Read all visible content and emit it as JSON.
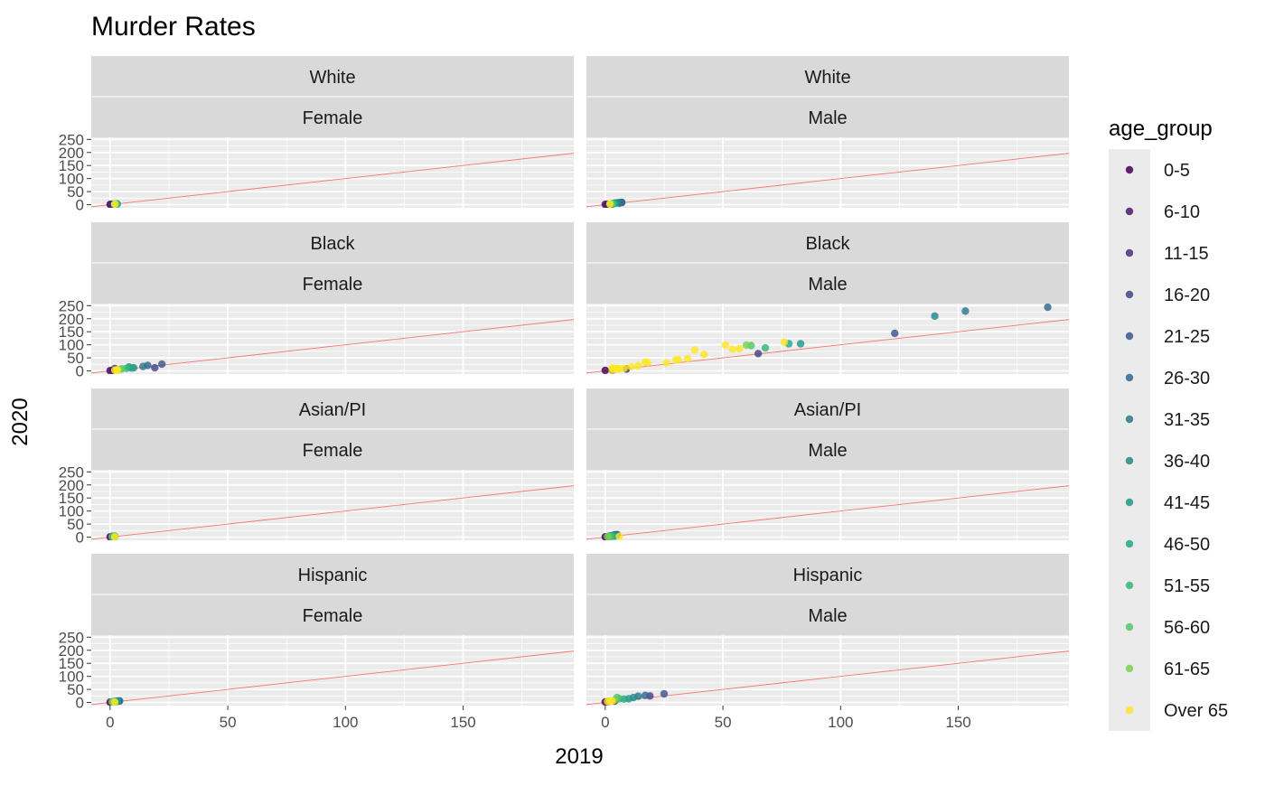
{
  "chart_data": {
    "type": "scatter",
    "title": "Murder Rates",
    "xlabel": "2019",
    "ylabel": "2020",
    "xlim": [
      -8,
      197
    ],
    "ylim": [
      -12,
      258
    ],
    "x_ticks": [
      0,
      50,
      100,
      150
    ],
    "y_ticks": [
      0,
      50,
      100,
      150,
      200,
      250
    ],
    "grid": true,
    "reference_line": {
      "slope": 1,
      "intercept": 0,
      "color": "#F8766D"
    },
    "legend": {
      "title": "age_group",
      "placement": "right",
      "entries": [
        {
          "label": "0-5",
          "color": "#440154"
        },
        {
          "label": "6-10",
          "color": "#481A6C"
        },
        {
          "label": "11-15",
          "color": "#472F7D"
        },
        {
          "label": "16-20",
          "color": "#414487"
        },
        {
          "label": "21-25",
          "color": "#39568C"
        },
        {
          "label": "26-30",
          "color": "#31688E"
        },
        {
          "label": "31-35",
          "color": "#2A788E"
        },
        {
          "label": "36-40",
          "color": "#23888E"
        },
        {
          "label": "41-45",
          "color": "#1F988B"
        },
        {
          "label": "46-50",
          "color": "#22A884"
        },
        {
          "label": "51-55",
          "color": "#35B779"
        },
        {
          "label": "56-60",
          "color": "#54C568"
        },
        {
          "label": "61-65",
          "color": "#7AD151"
        },
        {
          "label": "Over 65",
          "color": "#FDE725"
        }
      ]
    },
    "facets": [
      {
        "race": "White",
        "sex": "Female",
        "points": [
          [
            0,
            1,
            0
          ],
          [
            0.5,
            1,
            1
          ],
          [
            1,
            1,
            2
          ],
          [
            1.5,
            1,
            3
          ],
          [
            2,
            2,
            4
          ],
          [
            2,
            2,
            5
          ],
          [
            2.5,
            2,
            6
          ],
          [
            3,
            2,
            7
          ],
          [
            3,
            3,
            8
          ],
          [
            2.5,
            3,
            9
          ],
          [
            3,
            3,
            10
          ],
          [
            2.5,
            3,
            11
          ],
          [
            2,
            2,
            12
          ],
          [
            2,
            2,
            13
          ]
        ]
      },
      {
        "race": "White",
        "sex": "Male",
        "points": [
          [
            0,
            1,
            0
          ],
          [
            1,
            1,
            1
          ],
          [
            3,
            2,
            2
          ],
          [
            6,
            6,
            3
          ],
          [
            7,
            8,
            4
          ],
          [
            7,
            9,
            5
          ],
          [
            6,
            8,
            6
          ],
          [
            5,
            7,
            7
          ],
          [
            4,
            6,
            8
          ],
          [
            4,
            5,
            9
          ],
          [
            3,
            4,
            10
          ],
          [
            3,
            3,
            11
          ],
          [
            2,
            2,
            12
          ],
          [
            2,
            3,
            13
          ]
        ]
      },
      {
        "race": "Black",
        "sex": "Female",
        "points": [
          [
            0,
            1,
            0
          ],
          [
            1,
            2,
            1
          ],
          [
            2,
            9,
            2
          ],
          [
            19,
            12,
            3
          ],
          [
            22,
            26,
            4
          ],
          [
            16,
            21,
            5
          ],
          [
            14,
            17,
            6
          ],
          [
            10,
            12,
            7
          ],
          [
            8,
            15,
            8
          ],
          [
            9,
            11,
            9
          ],
          [
            7,
            10,
            10
          ],
          [
            5,
            8,
            11
          ],
          [
            4,
            5,
            12
          ],
          [
            3,
            4,
            13
          ],
          [
            2,
            3,
            14
          ],
          [
            3,
            2,
            15
          ]
        ]
      },
      {
        "race": "Black",
        "sex": "Male",
        "points": [
          [
            0,
            2,
            0
          ],
          [
            3,
            3,
            1
          ],
          [
            9,
            7,
            2
          ],
          [
            65,
            66,
            3
          ],
          [
            123,
            144,
            4
          ],
          [
            188,
            244,
            5
          ],
          [
            153,
            229,
            6
          ],
          [
            140,
            210,
            7
          ],
          [
            83,
            104,
            8
          ],
          [
            78,
            104,
            9
          ],
          [
            68,
            88,
            10
          ],
          [
            62,
            97,
            11
          ],
          [
            60,
            99,
            12
          ],
          [
            57,
            85,
            13
          ],
          [
            54,
            83,
            14
          ],
          [
            51,
            99,
            15
          ],
          [
            38,
            80,
            16
          ],
          [
            42,
            63,
            17
          ],
          [
            76,
            110,
            18
          ],
          [
            35,
            47,
            19
          ],
          [
            31,
            43,
            20
          ],
          [
            30,
            42,
            21
          ],
          [
            26,
            31,
            22
          ],
          [
            18,
            32,
            23
          ],
          [
            17,
            34,
            24
          ],
          [
            14,
            20,
            25
          ],
          [
            11,
            16,
            26
          ],
          [
            8,
            10,
            27
          ],
          [
            6,
            9,
            28
          ],
          [
            5,
            7,
            29
          ],
          [
            4,
            8,
            30
          ],
          [
            3,
            4,
            31
          ],
          [
            5,
            10,
            32
          ],
          [
            6,
            8,
            33
          ],
          [
            4,
            9,
            34
          ],
          [
            3,
            12,
            35
          ]
        ]
      },
      {
        "race": "Asian/PI",
        "sex": "Female",
        "points": [
          [
            0,
            1,
            0
          ],
          [
            1,
            2,
            1
          ],
          [
            1,
            3,
            2
          ],
          [
            2,
            3,
            3
          ],
          [
            2,
            2,
            4
          ],
          [
            1,
            3,
            5
          ],
          [
            2,
            2,
            6
          ],
          [
            1,
            2,
            7
          ],
          [
            2,
            1,
            8
          ],
          [
            1,
            2,
            9
          ],
          [
            2,
            2,
            10
          ],
          [
            1,
            1,
            11
          ],
          [
            2,
            1,
            12
          ],
          [
            2,
            1,
            13
          ]
        ]
      },
      {
        "race": "Asian/PI",
        "sex": "Male",
        "points": [
          [
            0,
            1,
            0
          ],
          [
            1,
            2,
            1
          ],
          [
            3,
            5,
            2
          ],
          [
            4,
            9,
            3
          ],
          [
            5,
            10,
            4
          ],
          [
            5,
            8,
            5
          ],
          [
            4,
            7,
            6
          ],
          [
            3,
            6,
            7
          ],
          [
            2,
            5,
            8
          ],
          [
            4,
            4,
            9
          ],
          [
            3,
            3,
            10
          ],
          [
            2,
            2,
            11
          ],
          [
            1,
            2,
            12
          ],
          [
            6,
            3,
            13
          ]
        ]
      },
      {
        "race": "Hispanic",
        "sex": "Female",
        "points": [
          [
            0,
            1,
            0
          ],
          [
            1,
            1,
            1
          ],
          [
            2,
            3,
            2
          ],
          [
            3,
            4,
            3
          ],
          [
            4,
            5,
            4
          ],
          [
            3,
            5,
            5
          ],
          [
            4,
            6,
            6
          ],
          [
            3,
            5,
            7
          ],
          [
            3,
            4,
            8
          ],
          [
            2,
            4,
            9
          ],
          [
            2,
            3,
            10
          ],
          [
            1,
            3,
            11
          ],
          [
            1,
            2,
            12
          ],
          [
            2,
            1,
            13
          ]
        ]
      },
      {
        "race": "Hispanic",
        "sex": "Male",
        "points": [
          [
            0,
            2,
            0
          ],
          [
            1,
            3,
            1
          ],
          [
            4,
            5,
            2
          ],
          [
            19,
            25,
            3
          ],
          [
            25,
            33,
            4
          ],
          [
            17,
            27,
            5
          ],
          [
            14,
            24,
            6
          ],
          [
            12,
            19,
            7
          ],
          [
            10,
            14,
            8
          ],
          [
            8,
            13,
            9
          ],
          [
            6,
            14,
            10
          ],
          [
            5,
            19,
            11
          ],
          [
            4,
            10,
            12
          ],
          [
            3,
            6,
            13
          ],
          [
            2,
            5,
            14
          ],
          [
            1,
            4,
            15
          ]
        ]
      }
    ]
  }
}
